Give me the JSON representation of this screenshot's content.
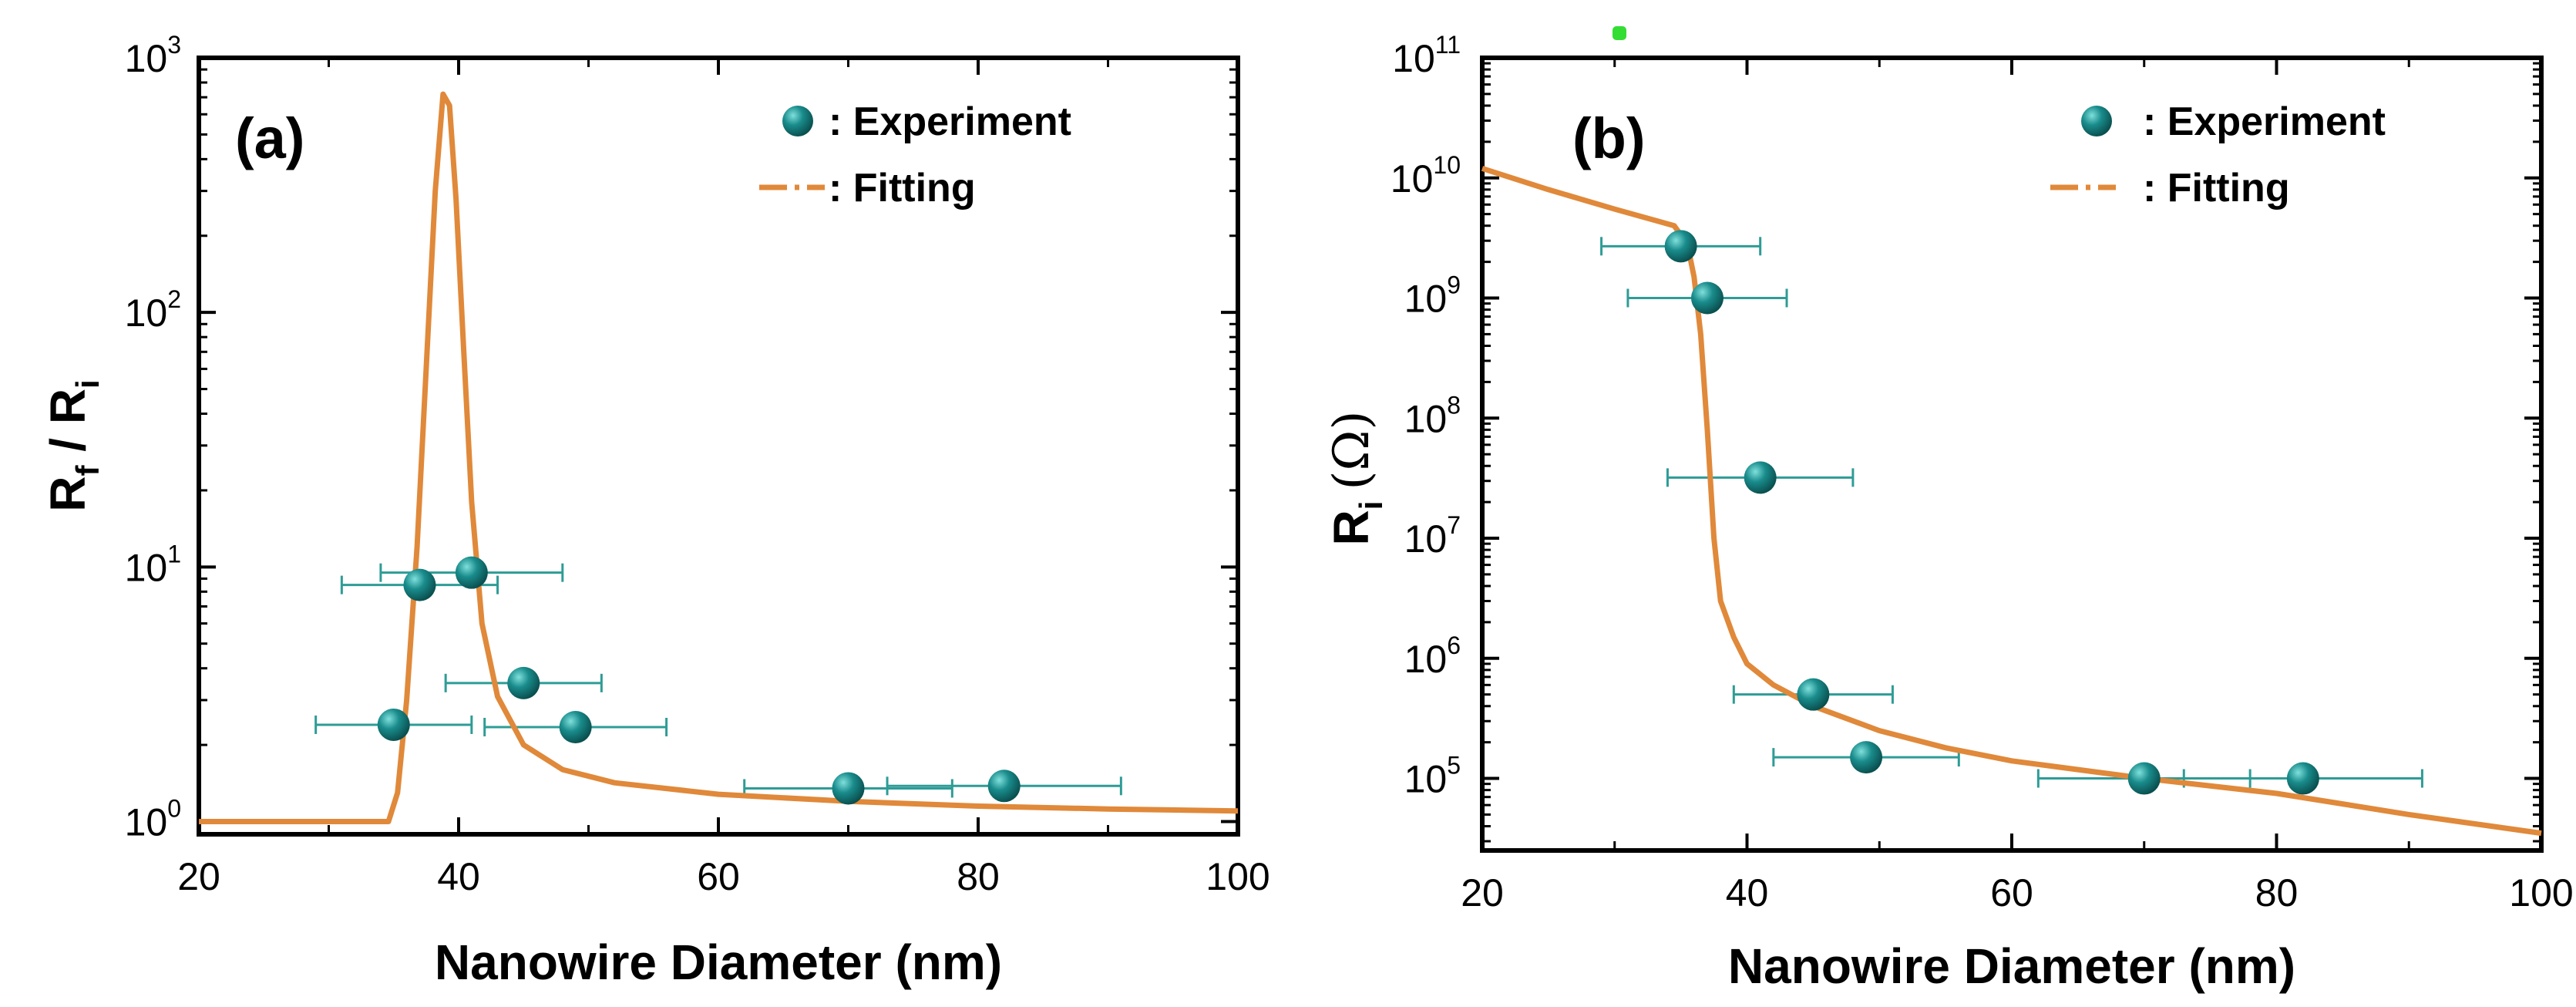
{
  "colors": {
    "experiment": "#1a8c8c",
    "experiment_highlight": "#7fe0dc",
    "fitting": "#e0893a",
    "errorbar": "#2e9c96",
    "axis": "#000000"
  },
  "chart_data": [
    {
      "type": "scatter",
      "panel_label": "(a)",
      "xlabel": "Nanowire Diameter (nm)",
      "ylabel": "R_f / R_i",
      "ylabel_parts": {
        "main1": "R",
        "sub1": "f",
        "sep": " / ",
        "main2": "R",
        "sub2": "i"
      },
      "yscale": "log",
      "xlim": [
        20,
        100
      ],
      "ylim_exp": [
        -0.05,
        3
      ],
      "xticks": [
        20,
        40,
        60,
        80,
        100
      ],
      "yticks": [
        {
          "base": "10",
          "exp": "0",
          "value_exp": 0
        },
        {
          "base": "10",
          "exp": "1",
          "value_exp": 1
        },
        {
          "base": "10",
          "exp": "2",
          "value_exp": 2
        },
        {
          "base": "10",
          "exp": "3",
          "value_exp": 3
        }
      ],
      "legend": {
        "experiment": ": Experiment",
        "fitting": ": Fitting",
        "placement": "top-right"
      },
      "experiment": [
        {
          "x": 35,
          "y": 2.4,
          "xerr": 6
        },
        {
          "x": 37,
          "y": 8.5,
          "xerr": 6
        },
        {
          "x": 41,
          "y": 9.5,
          "xerr": 7
        },
        {
          "x": 45,
          "y": 3.5,
          "xerr": 6
        },
        {
          "x": 49,
          "y": 2.35,
          "xerr": 7
        },
        {
          "x": 70,
          "y": 1.35,
          "xerr": 8
        },
        {
          "x": 82,
          "y": 1.38,
          "xerr": 9
        }
      ],
      "fitting": [
        [
          20,
          1.0
        ],
        [
          34.6,
          1.0
        ],
        [
          35.3,
          1.3
        ],
        [
          36,
          3
        ],
        [
          36.8,
          12
        ],
        [
          37.5,
          60
        ],
        [
          38.2,
          300
        ],
        [
          38.8,
          720
        ],
        [
          39.3,
          650
        ],
        [
          39.8,
          280
        ],
        [
          40.4,
          70
        ],
        [
          41,
          18
        ],
        [
          41.8,
          6
        ],
        [
          43,
          3.1
        ],
        [
          45,
          2.0
        ],
        [
          48,
          1.6
        ],
        [
          52,
          1.42
        ],
        [
          60,
          1.28
        ],
        [
          70,
          1.2
        ],
        [
          80,
          1.15
        ],
        [
          90,
          1.12
        ],
        [
          100,
          1.1
        ]
      ]
    },
    {
      "type": "scatter",
      "panel_label": "(b)",
      "xlabel": "Nanowire Diameter (nm)",
      "ylabel": "R_i (Ω)",
      "ylabel_parts": {
        "main": "R",
        "sub": "i",
        "unit": "(Ω)"
      },
      "yscale": "log",
      "xlim": [
        20,
        100
      ],
      "ylim_exp": [
        4.4,
        11
      ],
      "xticks": [
        20,
        40,
        60,
        80,
        100
      ],
      "yticks": [
        {
          "base": "10",
          "exp": "5",
          "value_exp": 5
        },
        {
          "base": "10",
          "exp": "6",
          "value_exp": 6
        },
        {
          "base": "10",
          "exp": "7",
          "value_exp": 7
        },
        {
          "base": "10",
          "exp": "8",
          "value_exp": 8
        },
        {
          "base": "10",
          "exp": "9",
          "value_exp": 9
        },
        {
          "base": "10",
          "exp": "10",
          "value_exp": 10
        },
        {
          "base": "10",
          "exp": "11",
          "value_exp": 11
        }
      ],
      "legend": {
        "experiment": ": Experiment",
        "fitting": ": Fitting",
        "placement": "top-right"
      },
      "experiment": [
        {
          "x": 35,
          "y": 2700000000.0,
          "xerr": 6
        },
        {
          "x": 37,
          "y": 1000000000.0,
          "xerr": 6
        },
        {
          "x": 41,
          "y": 32000000.0,
          "xerr": 7
        },
        {
          "x": 45,
          "y": 500000.0,
          "xerr": 6
        },
        {
          "x": 49,
          "y": 150000.0,
          "xerr": 7
        },
        {
          "x": 70,
          "y": 100000.0,
          "xerr": 8
        },
        {
          "x": 82,
          "y": 100000.0,
          "xerr": 9
        }
      ],
      "fitting": [
        [
          20,
          12000000000.0
        ],
        [
          25,
          8000000000.0
        ],
        [
          30,
          5500000000.0
        ],
        [
          34.5,
          4000000000.0
        ],
        [
          35.5,
          2800000000.0
        ],
        [
          36,
          1500000000.0
        ],
        [
          36.5,
          500000000.0
        ],
        [
          37,
          80000000.0
        ],
        [
          37.5,
          10000000.0
        ],
        [
          38,
          3000000.0
        ],
        [
          39,
          1500000.0
        ],
        [
          40,
          900000.0
        ],
        [
          42,
          600000.0
        ],
        [
          45,
          400000.0
        ],
        [
          50,
          250000.0
        ],
        [
          55,
          180000.0
        ],
        [
          60,
          140000.0
        ],
        [
          70,
          100000.0
        ],
        [
          80,
          75000.0
        ],
        [
          90,
          50000.0
        ],
        [
          100,
          35000.0
        ]
      ]
    }
  ]
}
